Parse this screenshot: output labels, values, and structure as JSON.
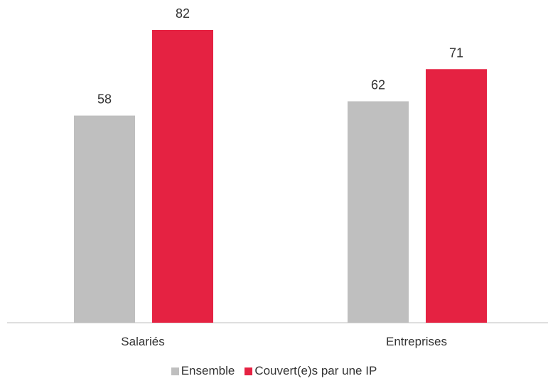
{
  "chart_data": {
    "type": "bar",
    "categories": [
      "Salariés",
      "Entreprises"
    ],
    "series": [
      {
        "name": "Ensemble",
        "values": [
          58,
          62
        ],
        "color": "#bfbfbf"
      },
      {
        "name": "Couvert(e)s par une IP",
        "values": [
          82,
          71
        ],
        "color": "#e52242"
      }
    ],
    "ylim": [
      0,
      100
    ],
    "grid": false,
    "legend_position": "bottom",
    "axis_color": "#bfbfbf",
    "text_color": "#333333"
  }
}
